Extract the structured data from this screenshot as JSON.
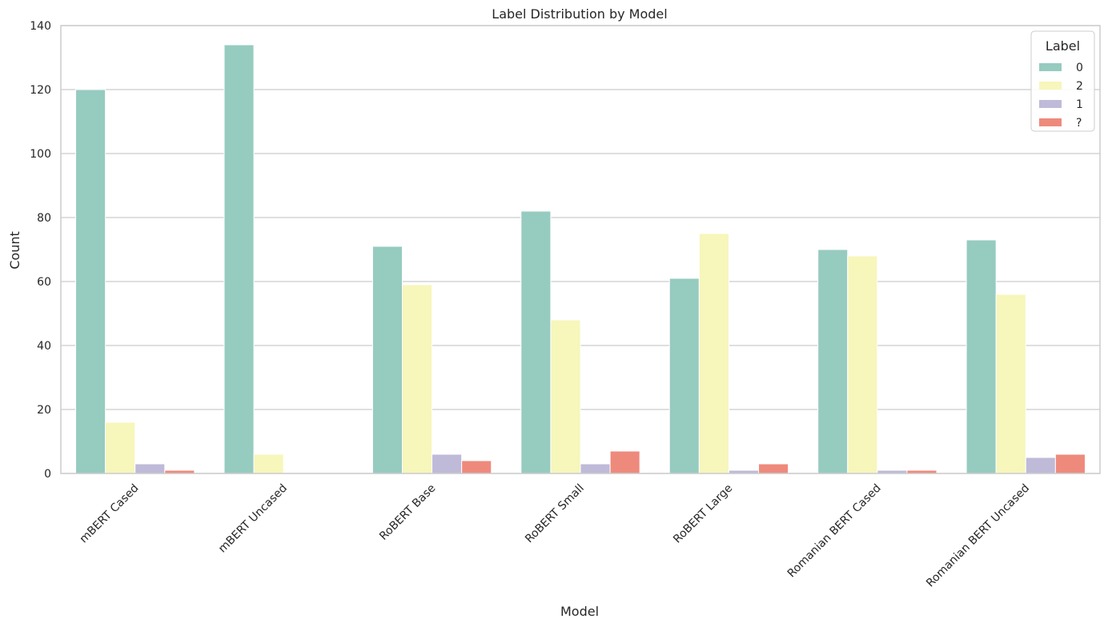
{
  "chart_data": {
    "type": "bar",
    "title": "Label Distribution by Model",
    "xlabel": "Model",
    "ylabel": "Count",
    "ylim": [
      0,
      140
    ],
    "yticks": [
      0,
      20,
      40,
      60,
      80,
      100,
      120,
      140
    ],
    "grid": "y",
    "categories": [
      "mBERT Cased",
      "mBERT Uncased",
      "RoBERT Base",
      "RoBERT Small",
      "RoBERT Large",
      "Romanian BERT Cased",
      "Romanian BERT Uncased"
    ],
    "legend": {
      "title": "Label",
      "placement": "top-right"
    },
    "series": [
      {
        "name": "0",
        "color": "#96cbc0",
        "values": [
          120,
          134,
          71,
          82,
          61,
          70,
          73
        ]
      },
      {
        "name": "2",
        "color": "#f7f6bb",
        "values": [
          16,
          6,
          59,
          48,
          75,
          68,
          56
        ]
      },
      {
        "name": "1",
        "color": "#bebad8",
        "values": [
          3,
          0,
          6,
          3,
          1,
          1,
          5
        ]
      },
      {
        "name": "?",
        "color": "#ee8a7c",
        "values": [
          1,
          0,
          4,
          7,
          3,
          1,
          6
        ]
      }
    ]
  }
}
